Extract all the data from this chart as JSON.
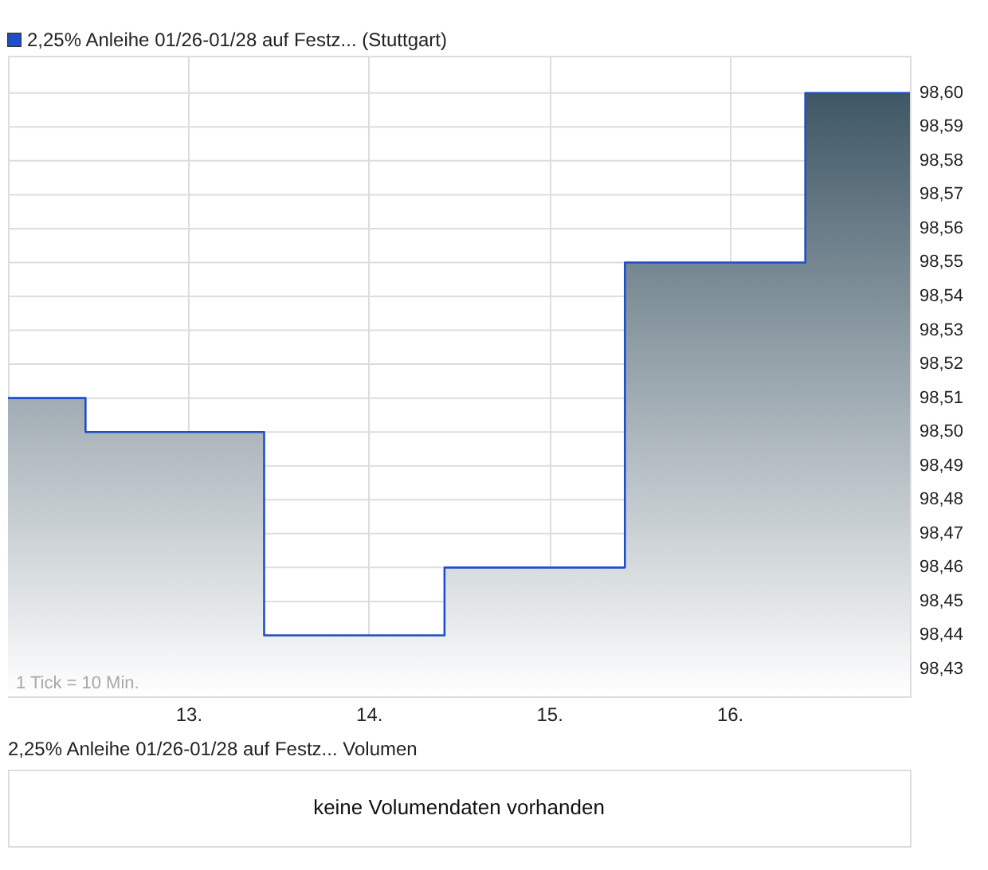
{
  "chart_data": [
    {
      "type": "area",
      "series": [
        {
          "name": "2,25% Anleihe 01/26-01/28 auf Festz... (Stuttgart)",
          "color": "#1f4fc8",
          "x": [
            12,
            12.43,
            12.43,
            13.42,
            13.42,
            14.42,
            14.42,
            15.42,
            15.42,
            16.42,
            16.42,
            17
          ],
          "values": [
            98.51,
            98.51,
            98.5,
            98.5,
            98.44,
            98.44,
            98.46,
            98.46,
            98.55,
            98.55,
            98.6,
            98.6
          ]
        }
      ],
      "xlim": [
        12,
        17
      ],
      "xticks": [
        {
          "value": 13,
          "label": "13."
        },
        {
          "value": 14,
          "label": "14."
        },
        {
          "value": 15,
          "label": "15."
        },
        {
          "value": 16,
          "label": "16."
        }
      ],
      "ylim": [
        98.422,
        98.611
      ],
      "yticks": [
        {
          "value": 98.43,
          "label": "98,43"
        },
        {
          "value": 98.44,
          "label": "98,44"
        },
        {
          "value": 98.45,
          "label": "98,45"
        },
        {
          "value": 98.46,
          "label": "98,46"
        },
        {
          "value": 98.47,
          "label": "98,47"
        },
        {
          "value": 98.48,
          "label": "98,48"
        },
        {
          "value": 98.49,
          "label": "98,49"
        },
        {
          "value": 98.5,
          "label": "98,50"
        },
        {
          "value": 98.51,
          "label": "98,51"
        },
        {
          "value": 98.52,
          "label": "98,52"
        },
        {
          "value": 98.53,
          "label": "98,53"
        },
        {
          "value": 98.54,
          "label": "98,54"
        },
        {
          "value": 98.55,
          "label": "98,55"
        },
        {
          "value": 98.56,
          "label": "98,56"
        },
        {
          "value": 98.57,
          "label": "98,57"
        },
        {
          "value": 98.58,
          "label": "98,58"
        },
        {
          "value": 98.59,
          "label": "98,59"
        },
        {
          "value": 98.6,
          "label": "98,60"
        }
      ],
      "grid": true,
      "legend": "top left",
      "annotations": [
        "1 Tick = 10 Min."
      ]
    },
    {
      "type": "other",
      "title": "2,25% Anleihe 01/26-01/28 auf Festz... Volumen",
      "annotations": [
        "keine Volumendaten vorhanden"
      ]
    }
  ]
}
